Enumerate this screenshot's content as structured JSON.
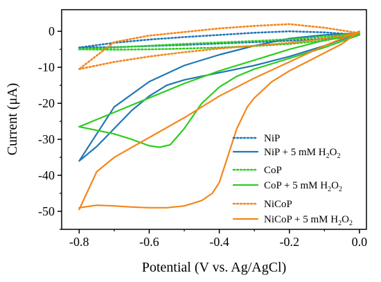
{
  "chart_data": {
    "type": "line",
    "title": "",
    "xlabel": "Potential (V vs. Ag/AgCl)",
    "ylabel": "Current (μA)",
    "xlim": [
      -0.85,
      0.02
    ],
    "ylim": [
      -55,
      6
    ],
    "x_ticks": [
      -0.8,
      -0.6,
      -0.4,
      -0.2,
      0.0
    ],
    "x_tick_labels": [
      "-0.8",
      "-0.6",
      "-0.4",
      "-0.2",
      "0.0"
    ],
    "y_ticks": [
      0,
      -10,
      -20,
      -30,
      -40,
      -50
    ],
    "y_tick_labels": [
      "0",
      "-10",
      "-20",
      "-30",
      "-40",
      "-50"
    ],
    "grid": false,
    "legend_position": "right",
    "colors": {
      "blue": "#1f77b4",
      "green": "#2ecc1f",
      "orange": "#f58518"
    },
    "series": [
      {
        "name": "NiP",
        "name_sub": "",
        "name_tail": "",
        "color": "#1f77b4",
        "style": "dotted",
        "x": [
          -0.8,
          -0.7,
          -0.6,
          -0.5,
          -0.4,
          -0.3,
          -0.2,
          -0.1,
          0.0,
          -0.1,
          -0.2,
          -0.3,
          -0.4,
          -0.5,
          -0.6,
          -0.7,
          -0.8
        ],
        "y": [
          -4.5,
          -4.4,
          -4.1,
          -3.8,
          -3.4,
          -3.0,
          -2.6,
          -2.1,
          -1.0,
          -0.3,
          0.0,
          -0.4,
          -1.0,
          -1.6,
          -2.3,
          -3.2,
          -4.5
        ]
      },
      {
        "name": "NiP + 5 mM H",
        "name_sub": "2",
        "name_tail": "O",
        "name_tail_sub": "2",
        "color": "#1f77b4",
        "style": "solid",
        "x": [
          -0.8,
          -0.75,
          -0.7,
          -0.65,
          -0.6,
          -0.55,
          -0.5,
          -0.45,
          -0.4,
          -0.3,
          -0.2,
          -0.1,
          0.0,
          -0.1,
          -0.2,
          -0.3,
          -0.4,
          -0.5,
          -0.6,
          -0.7,
          -0.8
        ],
        "y": [
          -36,
          -32,
          -27,
          -22,
          -18,
          -15,
          -13.5,
          -12.5,
          -11.5,
          -9.5,
          -7,
          -4,
          -0.5,
          -1,
          -2,
          -4,
          -6.5,
          -9.5,
          -14,
          -21,
          -36
        ]
      },
      {
        "name": "CoP",
        "name_sub": "",
        "name_tail": "",
        "color": "#2ecc1f",
        "style": "dotted",
        "x": [
          -0.8,
          -0.7,
          -0.6,
          -0.5,
          -0.4,
          -0.3,
          -0.2,
          -0.1,
          0.0,
          -0.1,
          -0.2,
          -0.3,
          -0.4,
          -0.5,
          -0.6,
          -0.7,
          -0.8
        ],
        "y": [
          -5,
          -5.1,
          -5.0,
          -4.8,
          -4.5,
          -4.1,
          -3.5,
          -2.6,
          -0.5,
          -1.5,
          -2.2,
          -2.7,
          -3.1,
          -3.5,
          -4.0,
          -4.5,
          -5.0
        ]
      },
      {
        "name": "CoP + 5 mM H",
        "name_sub": "2",
        "name_tail": "O",
        "name_tail_sub": "2",
        "color": "#2ecc1f",
        "style": "solid",
        "x": [
          -0.8,
          -0.7,
          -0.65,
          -0.6,
          -0.57,
          -0.54,
          -0.5,
          -0.45,
          -0.4,
          -0.35,
          -0.3,
          -0.2,
          -0.1,
          0.0,
          -0.1,
          -0.2,
          -0.3,
          -0.4,
          -0.5,
          -0.6,
          -0.7,
          -0.8
        ],
        "y": [
          -26.5,
          -28.5,
          -30,
          -31.8,
          -32.2,
          -31.5,
          -27,
          -20,
          -15.5,
          -12.5,
          -10.5,
          -7.5,
          -4.5,
          -1,
          -2.5,
          -5,
          -8,
          -11,
          -14.5,
          -18.5,
          -22.5,
          -26.5
        ]
      },
      {
        "name": "NiCoP",
        "name_sub": "",
        "name_tail": "",
        "color": "#f58518",
        "style": "dotted",
        "x": [
          -0.8,
          -0.7,
          -0.6,
          -0.5,
          -0.4,
          -0.3,
          -0.2,
          -0.1,
          0.0,
          -0.1,
          -0.2,
          -0.3,
          -0.4,
          -0.5,
          -0.6,
          -0.7,
          -0.8
        ],
        "y": [
          -10.5,
          -8.5,
          -7,
          -5.8,
          -4.8,
          -4,
          -3.2,
          -2,
          -0.5,
          1.0,
          2.0,
          1.5,
          0.8,
          -0.2,
          -1.2,
          -3,
          -10.5
        ]
      },
      {
        "name": "NiCoP + 5 mM H",
        "name_sub": "2",
        "name_tail": "O",
        "name_tail_sub": "2",
        "color": "#f58518",
        "style": "solid",
        "x": [
          -0.8,
          -0.75,
          -0.7,
          -0.65,
          -0.6,
          -0.55,
          -0.5,
          -0.45,
          -0.42,
          -0.4,
          -0.38,
          -0.35,
          -0.32,
          -0.3,
          -0.25,
          -0.2,
          -0.15,
          -0.1,
          -0.05,
          0.0,
          -0.1,
          -0.2,
          -0.3,
          -0.4,
          -0.5,
          -0.6,
          -0.7,
          -0.75,
          -0.8
        ],
        "y": [
          -49,
          -48.3,
          -48.5,
          -48.8,
          -49,
          -49,
          -48.5,
          -47,
          -45,
          -42,
          -36,
          -27,
          -21,
          -18.5,
          -14,
          -11,
          -8.5,
          -6,
          -3.5,
          0,
          -4,
          -8.5,
          -13,
          -18,
          -24,
          -29.5,
          -35,
          -39,
          -49.5
        ]
      }
    ]
  }
}
